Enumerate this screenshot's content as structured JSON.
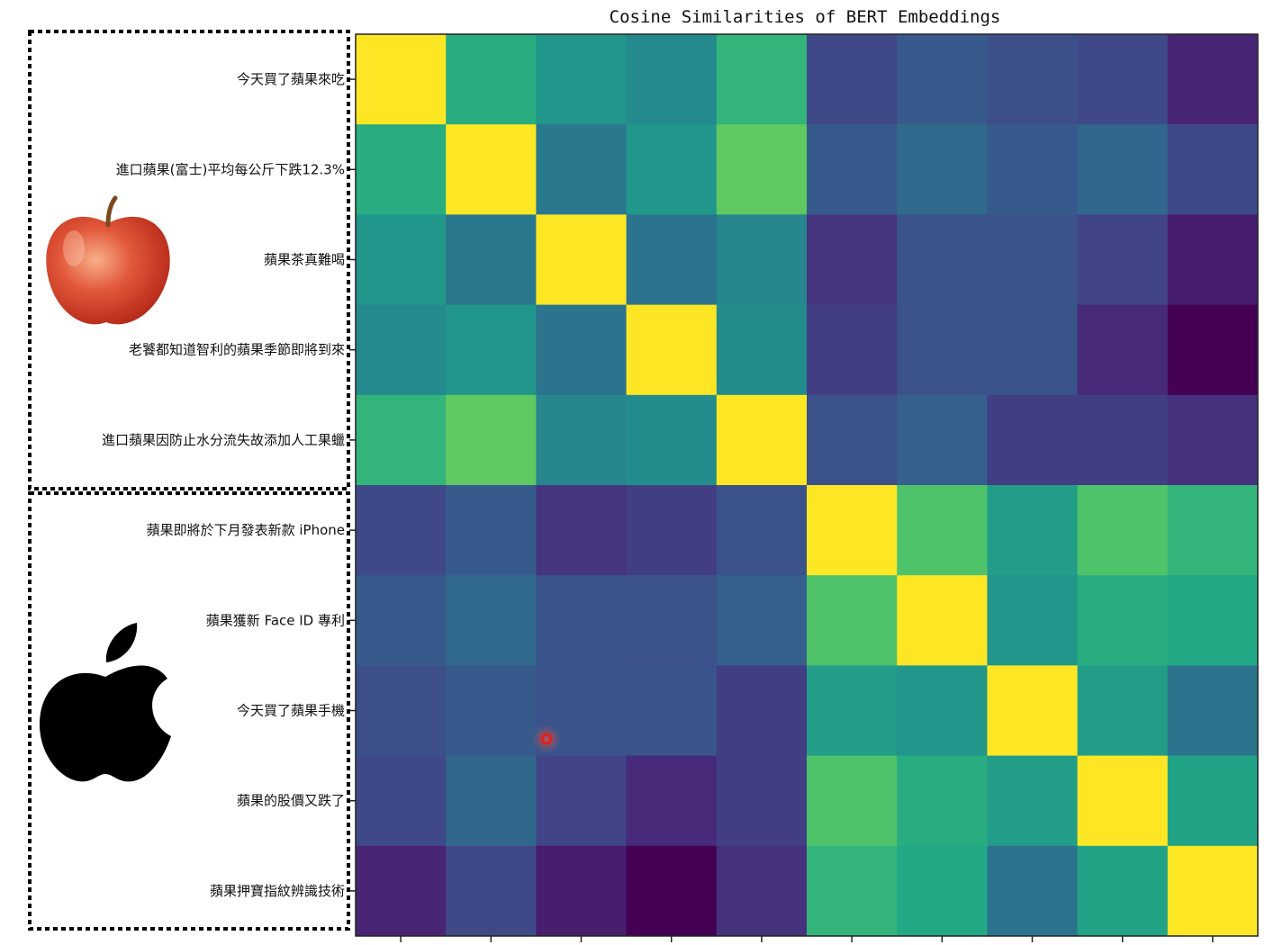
{
  "chart_data": {
    "type": "heatmap",
    "title": "Cosine Similarities of BERT Embeddings",
    "row_labels": [
      "今天買了蘋果來吃",
      "進口蘋果(富士)平均每公斤下跌12.3%",
      "蘋果茶真難喝",
      "老饕都知道智利的蘋果季節即將到來",
      "進口蘋果因防止水分流失故添加人工果蠟",
      "蘋果即將於下月發表新款 iPhone",
      "蘋果獲新 Face ID 專利",
      "今天買了蘋果手機",
      "蘋果的股價又跌了",
      "蘋果押寶指紋辨識技術"
    ],
    "column_labels": [
      "",
      "",
      "",
      "",
      "",
      "",
      "",
      "",
      "",
      ""
    ],
    "colormap": "viridis",
    "values": [
      [
        1.0,
        0.62,
        0.52,
        0.47,
        0.65,
        0.22,
        0.28,
        0.24,
        0.22,
        0.1
      ],
      [
        0.62,
        1.0,
        0.4,
        0.52,
        0.75,
        0.28,
        0.34,
        0.28,
        0.33,
        0.22
      ],
      [
        0.52,
        0.4,
        1.0,
        0.38,
        0.45,
        0.15,
        0.26,
        0.26,
        0.2,
        0.08
      ],
      [
        0.47,
        0.52,
        0.38,
        1.0,
        0.48,
        0.18,
        0.25,
        0.26,
        0.12,
        0.0
      ],
      [
        0.65,
        0.75,
        0.45,
        0.48,
        1.0,
        0.25,
        0.3,
        0.18,
        0.18,
        0.14
      ],
      [
        0.22,
        0.28,
        0.15,
        0.18,
        0.25,
        1.0,
        0.72,
        0.55,
        0.72,
        0.65
      ],
      [
        0.28,
        0.34,
        0.26,
        0.25,
        0.3,
        0.72,
        1.0,
        0.52,
        0.62,
        0.6
      ],
      [
        0.24,
        0.28,
        0.26,
        0.26,
        0.18,
        0.55,
        0.52,
        1.0,
        0.55,
        0.38
      ],
      [
        0.22,
        0.33,
        0.2,
        0.12,
        0.18,
        0.72,
        0.62,
        0.55,
        1.0,
        0.58
      ],
      [
        0.1,
        0.22,
        0.08,
        0.0,
        0.14,
        0.65,
        0.6,
        0.38,
        0.58,
        1.0
      ]
    ]
  },
  "groups": [
    {
      "name": "apple-fruit",
      "rows": [
        0,
        4
      ]
    },
    {
      "name": "apple-company",
      "rows": [
        5,
        9
      ]
    }
  ],
  "colors": {
    "fruit_red": "#d8412b",
    "fruit_highlight": "#f7a77a",
    "stem": "#7a4a1e",
    "logo": "#000000",
    "cursor": "#e0201a"
  }
}
